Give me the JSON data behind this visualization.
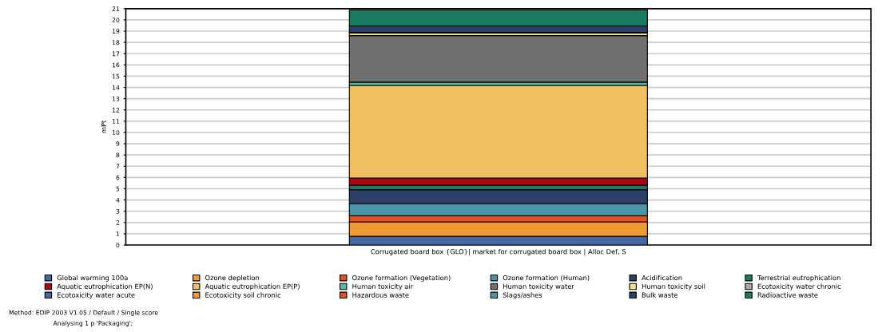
{
  "chart_data": {
    "type": "bar",
    "stacked": true,
    "ylabel": "mPt",
    "categories": [
      "Corrugated board box {GLO}| market for corrugated board box | Alloc Def, S"
    ],
    "ylim": [
      0,
      21
    ],
    "yticks": [
      0,
      1,
      2,
      3,
      4,
      5,
      6,
      7,
      8,
      9,
      10,
      11,
      12,
      13,
      14,
      15,
      16,
      17,
      18,
      19,
      20,
      21
    ],
    "grid": "y",
    "legend": "bottom",
    "annotations": [
      "Method: EDIP 2003 V1.05 / Default / Single score",
      "Analysing 1 p 'Packaging';"
    ],
    "series": [
      {
        "name": "Global warming 100a",
        "color": "#4466a3",
        "values": [
          0.78
        ]
      },
      {
        "name": "Ozone depletion",
        "color": "#f09a33",
        "values": [
          1.28
        ]
      },
      {
        "name": "Ozone formation (Vegetation)",
        "color": "#e8501c",
        "values": [
          0.54
        ]
      },
      {
        "name": "Ozone formation (Human)",
        "color": "#4a95a6",
        "values": [
          1.05
        ]
      },
      {
        "name": "Acidification",
        "color": "#2c3f66",
        "values": [
          1.27
        ]
      },
      {
        "name": "Terrestrial eutrophication",
        "color": "#1d7a62",
        "values": [
          0.4
        ]
      },
      {
        "name": "Aquatic eutrophication EP(N)",
        "color": "#a8080e",
        "values": [
          0.64
        ]
      },
      {
        "name": "Aquatic eutrophication EP(P)",
        "color": "#f0c060",
        "values": [
          8.22
        ]
      },
      {
        "name": "Human toxicity air",
        "color": "#5cb89c",
        "values": [
          0.29
        ]
      },
      {
        "name": "Human toxicity water",
        "color": "#707070",
        "values": [
          4.13
        ]
      },
      {
        "name": "Human toxicity soil",
        "color": "#f3e08a",
        "values": [
          0.27
        ]
      },
      {
        "name": "Ecotoxicity water chronic",
        "color": "#a8a8a8",
        "values": [
          0
        ]
      },
      {
        "name": "Ecotoxicity water acute",
        "color": "#4466a3",
        "values": [
          0
        ]
      },
      {
        "name": "Ecotoxicity soil chronic",
        "color": "#f09a33",
        "values": [
          0
        ]
      },
      {
        "name": "Hazardous waste",
        "color": "#e8501c",
        "values": [
          0
        ]
      },
      {
        "name": "Slags/ashes",
        "color": "#4a95a6",
        "values": [
          0
        ]
      },
      {
        "name": "Bulk waste",
        "color": "#2c3f66",
        "values": [
          0.59
        ]
      },
      {
        "name": "Radioactive waste",
        "color": "#1d7a62",
        "values": [
          1.42
        ]
      }
    ]
  }
}
